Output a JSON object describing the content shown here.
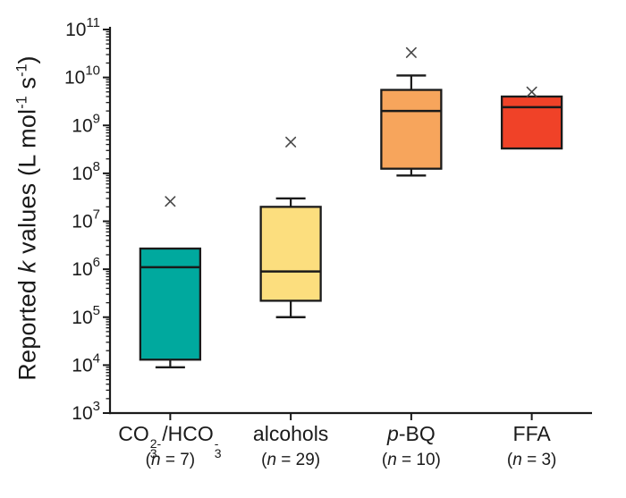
{
  "figure": {
    "background": "#ffffff"
  },
  "chart_data": {
    "type": "box",
    "title": "",
    "y_axis": {
      "scale": "log10",
      "label_plain": "Reported k values (L mol⁻¹ s⁻¹)",
      "label_tokens": [
        {
          "t": "Reported "
        },
        {
          "t": "k",
          "i": true
        },
        {
          "t": " values (L mol"
        },
        {
          "t": "-1",
          "sup": true
        },
        {
          "t": " s"
        },
        {
          "t": "-1",
          "sup": true
        },
        {
          "t": ")"
        }
      ],
      "min_exp": 3,
      "max_exp": 11,
      "major_tick_exps": [
        3,
        4,
        5,
        6,
        7,
        8,
        9,
        10,
        11
      ],
      "minor_ticks_per_decade": [
        2,
        3,
        4,
        5,
        6,
        7,
        8,
        9
      ],
      "grid": false
    },
    "x_axis": {
      "category_labels_plain": [
        "CO₃²⁻/HCO₃⁻",
        "alcohols",
        "p-BQ",
        "FFA"
      ],
      "n_labels": [
        "(n = 7)",
        "(n = 29)",
        "(n = 10)",
        "(n = 3)"
      ]
    },
    "series": [
      {
        "id": "co3-hco3",
        "label_plain": "CO₃²⁻/HCO₃⁻",
        "label_tokens": [
          {
            "t": "CO"
          },
          {
            "sup": "2-",
            "sub": "3"
          },
          {
            "t": "/HCO"
          },
          {
            "sup": "-",
            "sub": "3"
          }
        ],
        "n_label": "(n = 7)",
        "n": 7,
        "color": "#00A99E",
        "whisker_low": 9000,
        "q1": 13000,
        "median": 1100000,
        "q3": 2700000,
        "whisker_high": null,
        "outliers": [
          26000000
        ]
      },
      {
        "id": "alcohols",
        "label_plain": "alcohols",
        "label_tokens": [
          {
            "t": "alcohols"
          }
        ],
        "n_label": "(n = 29)",
        "n": 29,
        "color": "#FCDE7E",
        "whisker_low": 100000,
        "q1": 220000,
        "median": 900000,
        "q3": 20000000,
        "whisker_high": 30000000,
        "outliers": [
          450000000
        ]
      },
      {
        "id": "p-bq",
        "label_plain": "p-BQ",
        "label_tokens": [
          {
            "t": "p",
            "i": true
          },
          {
            "t": "-BQ"
          }
        ],
        "n_label": "(n = 10)",
        "n": 10,
        "color": "#F7A55C",
        "whisker_low": 90000000,
        "q1": 125000000,
        "median": 2000000000,
        "q3": 5500000000,
        "whisker_high": 11000000000,
        "outliers": [
          33000000000
        ]
      },
      {
        "id": "ffa",
        "label_plain": "FFA",
        "label_tokens": [
          {
            "t": "FFA"
          }
        ],
        "n_label": "(n = 3)",
        "n": 3,
        "color": "#F04228",
        "whisker_low": null,
        "q1": 330000000,
        "median": 2400000000,
        "q3": 4000000000,
        "whisker_high": null,
        "outliers": [
          5000000000
        ]
      }
    ],
    "styles": {
      "axis_color": "#1a1a1a",
      "box_border_color": "#1a1a1a",
      "outlier_marker": "x",
      "outlier_color": "#474747",
      "background": "#ffffff"
    }
  }
}
